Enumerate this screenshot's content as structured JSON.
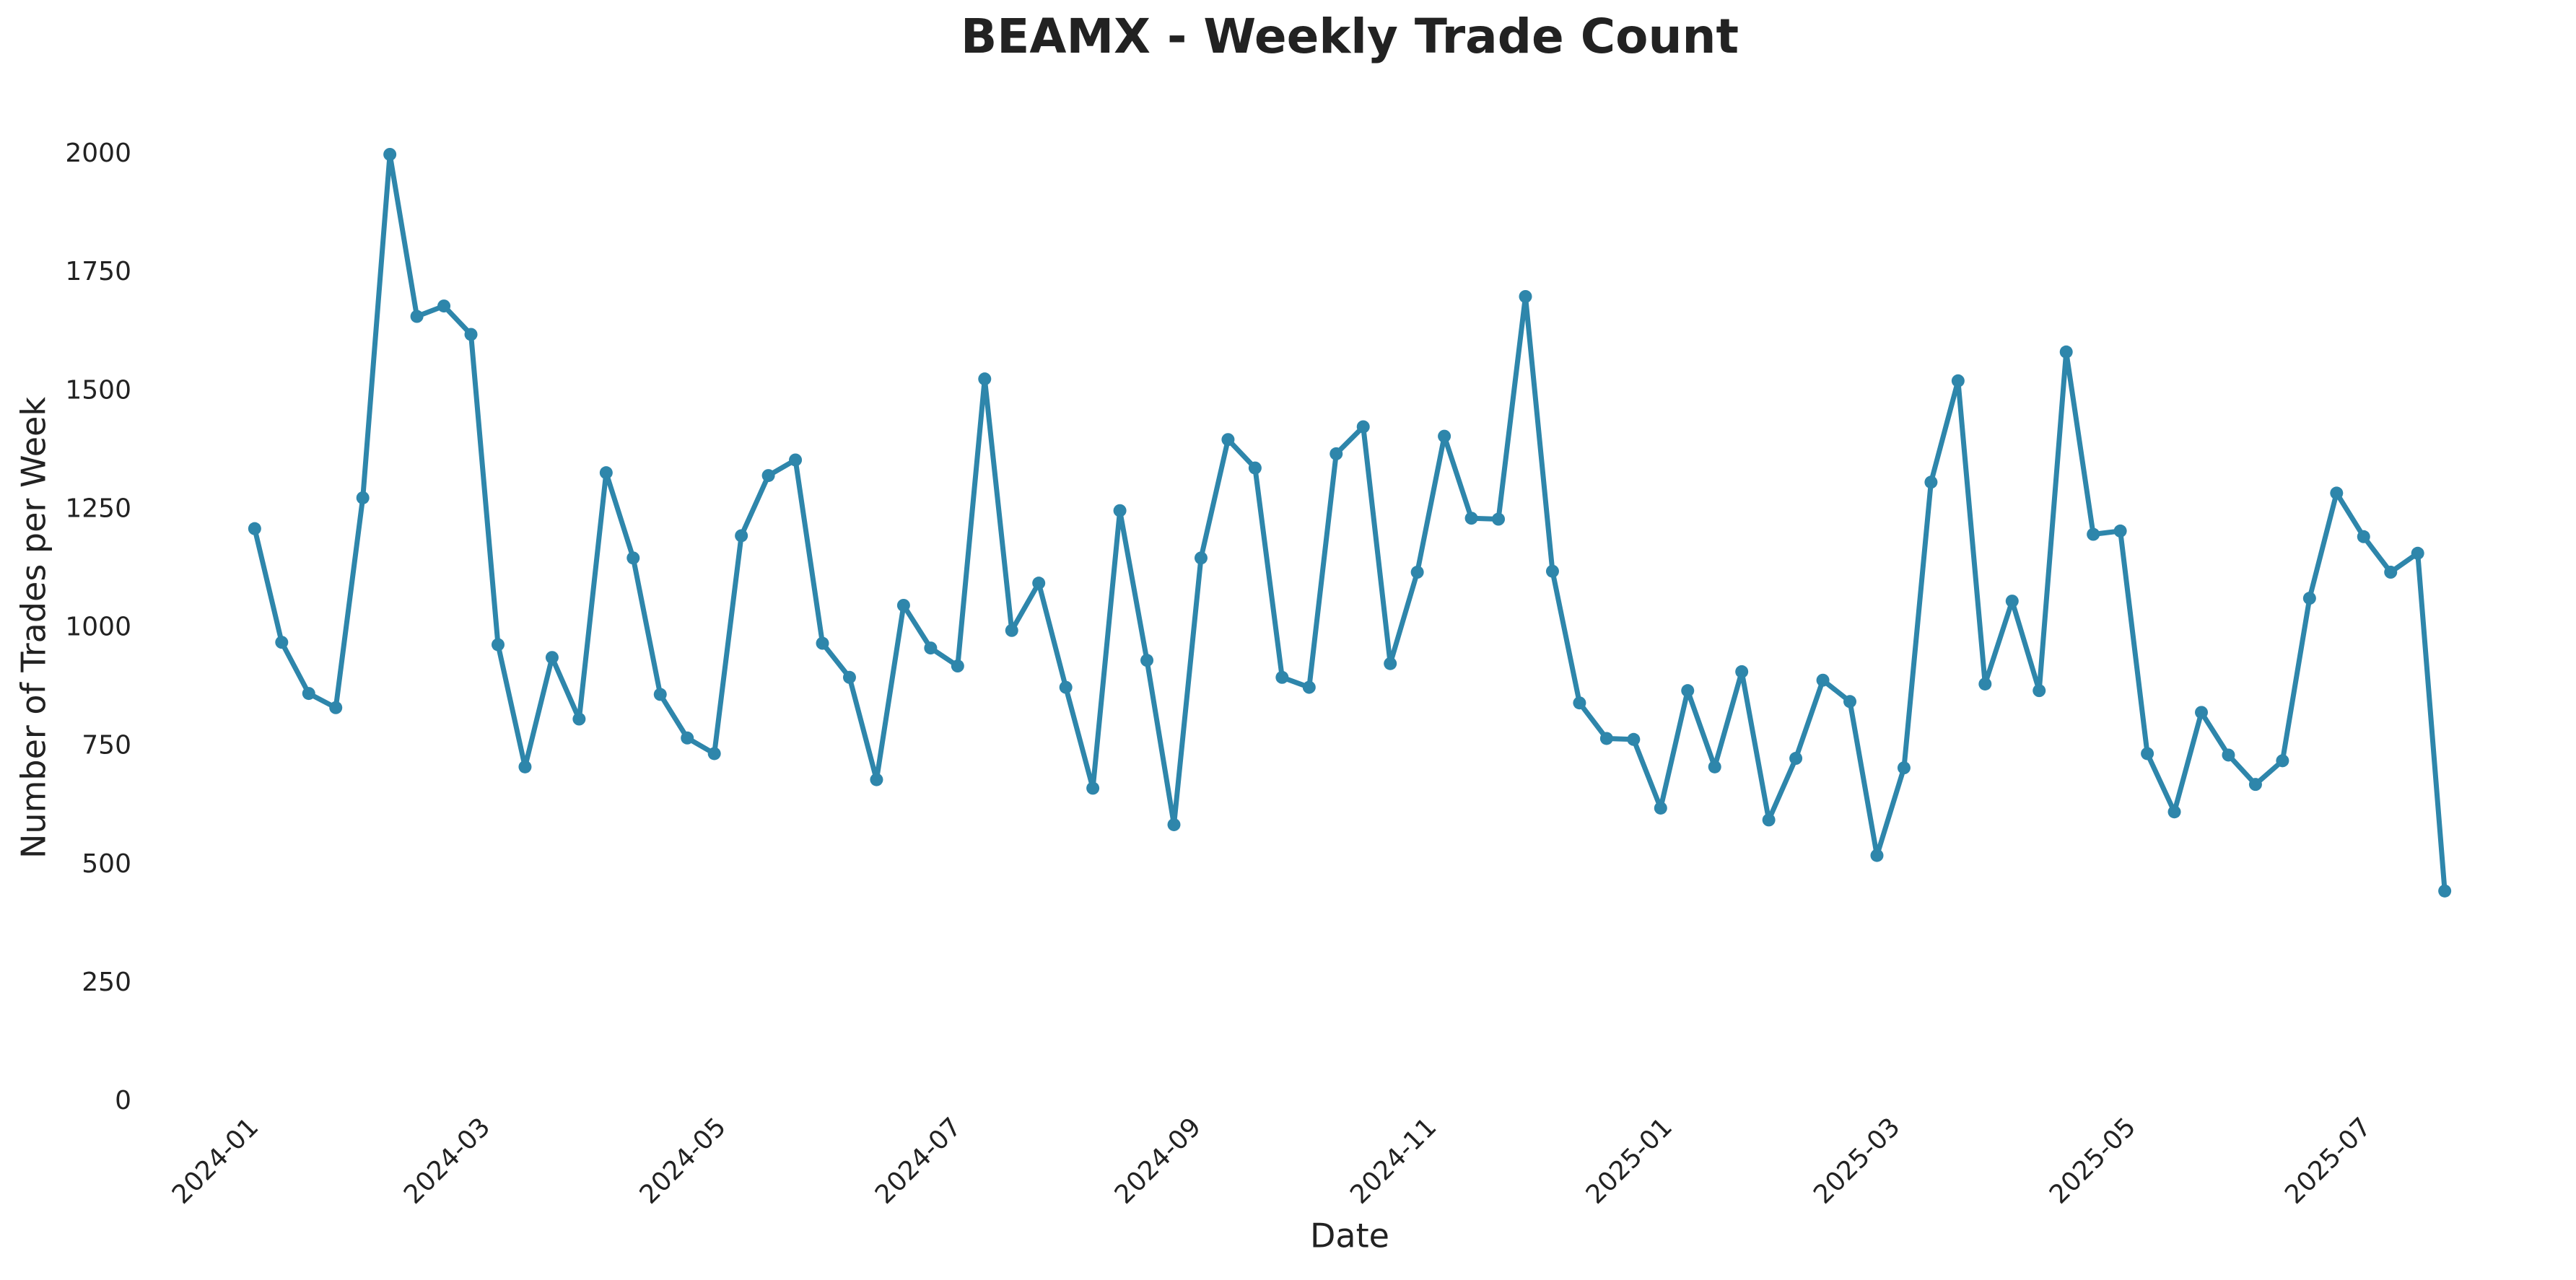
{
  "chart_data": {
    "type": "line",
    "title": "BEAMX - Weekly Trade Count",
    "x_label": "Date",
    "y_label": "Number of Trades per Week",
    "categories": [
      null,
      null,
      null,
      null,
      null,
      null,
      null,
      null,
      null,
      null,
      null,
      null,
      null,
      null,
      null,
      null,
      null,
      null,
      null,
      null,
      null,
      null,
      null,
      null,
      null,
      null,
      null,
      null,
      null,
      null,
      null,
      null,
      null,
      null,
      null,
      null,
      null,
      null,
      null,
      null,
      null,
      null,
      null,
      null,
      null,
      null,
      null,
      null,
      null,
      null,
      null,
      null,
      null,
      null,
      null,
      null,
      null,
      null,
      null,
      null,
      null,
      null,
      null,
      null,
      null,
      null,
      null,
      null,
      null,
      null,
      null,
      null,
      null,
      null,
      null,
      null,
      null,
      null,
      null,
      null,
      null,
      null
    ],
    "values": [
      1210,
      970,
      862,
      832,
      1275,
      2000,
      1658,
      1680,
      1620,
      965,
      707,
      938,
      808,
      1328,
      1148,
      860,
      768,
      735,
      1195,
      1322,
      1355,
      968,
      896,
      680,
      1048,
      958,
      920,
      1526,
      995,
      1095,
      875,
      662,
      1248,
      932,
      585,
      1148,
      1398,
      1338,
      896,
      875,
      1368,
      1425,
      925,
      1118,
      1405,
      1232,
      1230,
      1700,
      1120,
      842,
      767,
      765,
      620,
      868,
      707,
      908,
      595,
      725,
      890,
      845,
      520,
      705,
      1308,
      1522,
      882,
      1057,
      868,
      1583,
      1198,
      1205,
      735,
      612,
      822,
      732,
      670,
      720,
      1063,
      1285,
      1193,
      1118,
      1158,
      445
    ],
    "color": "#2e86ab",
    "xlim": [
      -4,
      85
    ],
    "xticks": [
      {
        "value": 0,
        "label": "2024-01"
      },
      {
        "value": 8.57,
        "label": "2024-03"
      },
      {
        "value": 17.29,
        "label": "2024-05"
      },
      {
        "value": 26,
        "label": "2024-07"
      },
      {
        "value": 34.86,
        "label": "2024-09"
      },
      {
        "value": 43.57,
        "label": "2024-11"
      },
      {
        "value": 52.29,
        "label": "2025-01"
      },
      {
        "value": 60.71,
        "label": "2025-03"
      },
      {
        "value": 69.43,
        "label": "2025-05"
      },
      {
        "value": 78.14,
        "label": "2025-07"
      }
    ],
    "ylim": [
      0,
      2000
    ],
    "yticks": [
      0,
      250,
      500,
      750,
      1000,
      1250,
      1500,
      1750,
      2000
    ],
    "grid": false
  }
}
